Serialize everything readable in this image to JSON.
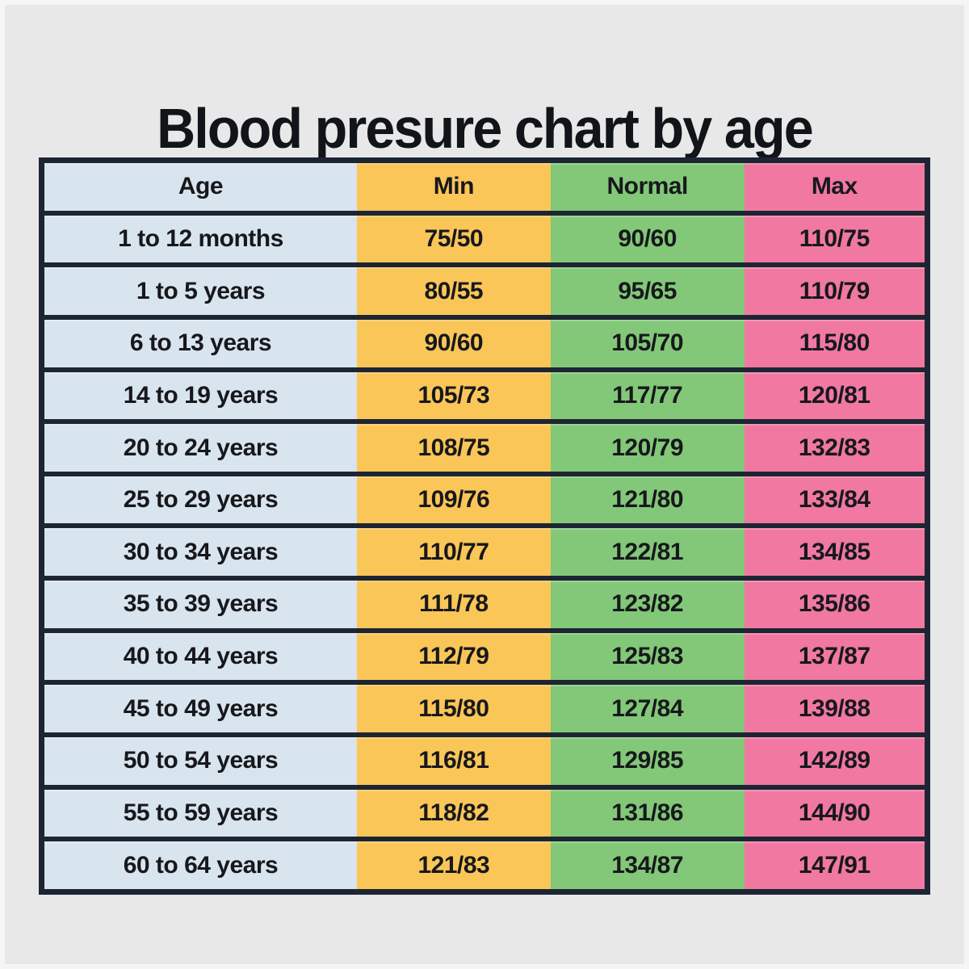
{
  "page": {
    "title": "Blood presure chart by age"
  },
  "colors": {
    "background": "#e8e8e8",
    "border": "#1d2533",
    "age_column": "#d8e4ee",
    "min_column": "#fac657",
    "normal_column": "#82c878",
    "max_column": "#f078a1",
    "text": "#17181c"
  },
  "table": {
    "headers": [
      "Age",
      "Min",
      "Normal",
      "Max"
    ],
    "rows": [
      {
        "age": "1 to 12 months",
        "min": "75/50",
        "normal": "90/60",
        "max": "110/75"
      },
      {
        "age": "1 to 5 years",
        "min": "80/55",
        "normal": "95/65",
        "max": "110/79"
      },
      {
        "age": "6 to 13 years",
        "min": "90/60",
        "normal": "105/70",
        "max": "115/80"
      },
      {
        "age": "14 to 19 years",
        "min": "105/73",
        "normal": "117/77",
        "max": "120/81"
      },
      {
        "age": "20 to 24 years",
        "min": "108/75",
        "normal": "120/79",
        "max": "132/83"
      },
      {
        "age": "25 to 29 years",
        "min": "109/76",
        "normal": "121/80",
        "max": "133/84"
      },
      {
        "age": "30 to 34 years",
        "min": "110/77",
        "normal": "122/81",
        "max": "134/85"
      },
      {
        "age": "35 to 39 years",
        "min": "111/78",
        "normal": "123/82",
        "max": "135/86"
      },
      {
        "age": "40 to 44 years",
        "min": "112/79",
        "normal": "125/83",
        "max": "137/87"
      },
      {
        "age": "45 to 49 years",
        "min": "115/80",
        "normal": "127/84",
        "max": "139/88"
      },
      {
        "age": "50 to 54 years",
        "min": "116/81",
        "normal": "129/85",
        "max": "142/89"
      },
      {
        "age": "55 to 59 years",
        "min": "118/82",
        "normal": "131/86",
        "max": "144/90"
      },
      {
        "age": "60 to 64 years",
        "min": "121/83",
        "normal": "134/87",
        "max": "147/91"
      }
    ]
  },
  "chart_data": {
    "type": "table",
    "title": "Blood presure chart by age",
    "columns": [
      "Age",
      "Min",
      "Normal",
      "Max"
    ],
    "rows": [
      [
        "1 to 12 months",
        "75/50",
        "90/60",
        "110/75"
      ],
      [
        "1 to 5 years",
        "80/55",
        "95/65",
        "110/79"
      ],
      [
        "6 to 13 years",
        "90/60",
        "105/70",
        "115/80"
      ],
      [
        "14 to 19 years",
        "105/73",
        "117/77",
        "120/81"
      ],
      [
        "20 to 24 years",
        "108/75",
        "120/79",
        "132/83"
      ],
      [
        "25 to 29 years",
        "109/76",
        "121/80",
        "133/84"
      ],
      [
        "30 to 34 years",
        "110/77",
        "122/81",
        "134/85"
      ],
      [
        "35 to 39 years",
        "111/78",
        "123/82",
        "135/86"
      ],
      [
        "40 to 44 years",
        "112/79",
        "125/83",
        "137/87"
      ],
      [
        "45 to 49 years",
        "115/80",
        "127/84",
        "139/88"
      ],
      [
        "50 to 54 years",
        "116/81",
        "129/85",
        "142/89"
      ],
      [
        "55 to 59 years",
        "118/82",
        "131/86",
        "144/90"
      ],
      [
        "60 to 64 years",
        "121/83",
        "134/87",
        "147/91"
      ]
    ],
    "layout": {
      "column_colors": [
        "#d8e4ee",
        "#fac657",
        "#82c878",
        "#f078a1"
      ],
      "grid": "dark horizontal dividers, no vertical dividers",
      "legend": "none"
    }
  }
}
